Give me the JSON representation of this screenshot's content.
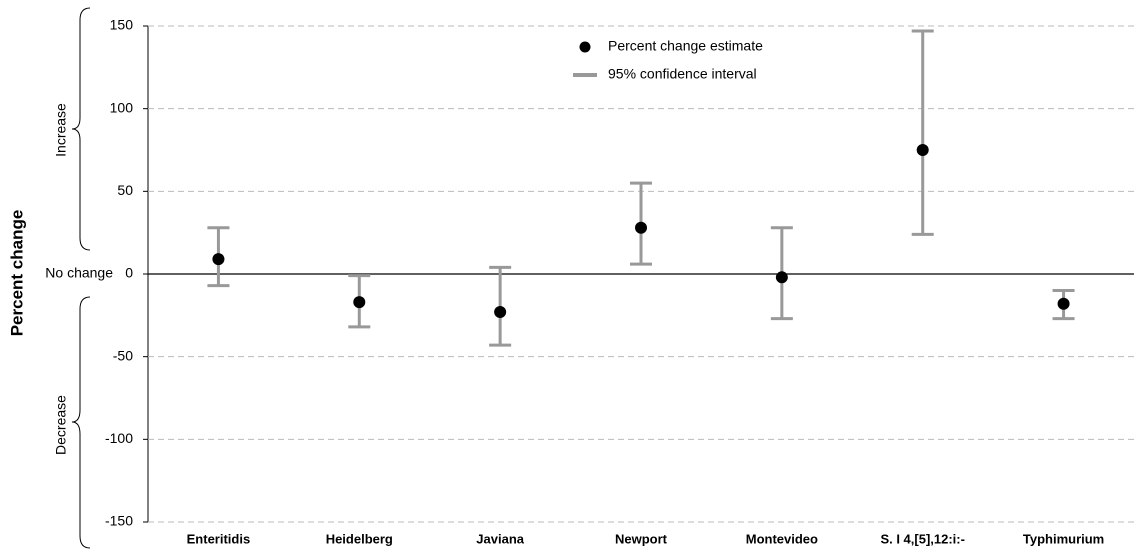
{
  "chart_data": {
    "type": "errorbar",
    "y_label": "Percent change",
    "annotations": {
      "increase": "Increase",
      "decrease": "Decrease",
      "no_change": "No change"
    },
    "categories": [
      "Enteritidis",
      "Heidelberg",
      "Javiana",
      "Newport",
      "Montevideo",
      "S. I 4,[5],12:i:-",
      "Typhimurium"
    ],
    "series": [
      {
        "name": "Percent change estimate",
        "color": "#000000",
        "values": [
          9,
          -17,
          -23,
          28,
          -2,
          75,
          -18
        ]
      },
      {
        "name": "95% confidence interval",
        "color": "#999999",
        "lower": [
          -7,
          -32,
          -43,
          6,
          -27,
          24,
          -27
        ],
        "upper": [
          28,
          -1,
          4,
          55,
          28,
          147,
          -10
        ]
      }
    ],
    "ylim": [
      -150,
      150
    ],
    "yticks": [
      150,
      100,
      50,
      0,
      -50,
      -100,
      -150
    ],
    "grid": true
  }
}
